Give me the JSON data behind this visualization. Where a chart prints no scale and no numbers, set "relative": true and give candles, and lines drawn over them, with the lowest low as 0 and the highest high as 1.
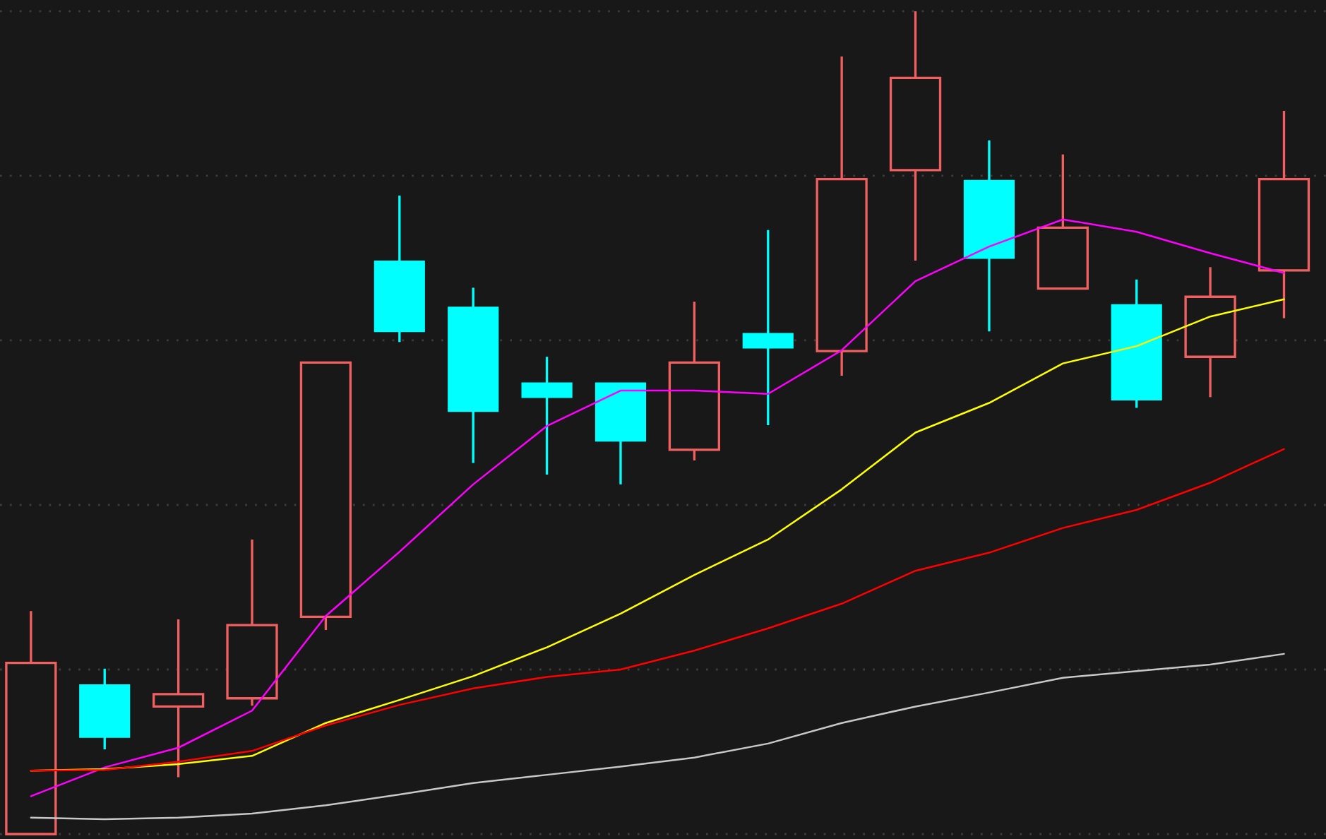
{
  "chart_data": {
    "type": "candlestick",
    "relative": true,
    "grid": "y",
    "tick_labels": false,
    "categories": [
      null,
      null,
      null,
      null,
      null,
      null,
      null,
      null,
      null,
      null,
      null,
      null,
      null,
      null,
      null,
      null,
      null,
      null
    ],
    "ohlc": [
      [
        0.0,
        0.271,
        0.0,
        0.208
      ],
      [
        0.181,
        0.201,
        0.103,
        0.118
      ],
      [
        0.155,
        0.261,
        0.069,
        0.17
      ],
      [
        0.165,
        0.358,
        0.156,
        0.254
      ],
      [
        0.264,
        0.573,
        0.248,
        0.573
      ],
      [
        0.696,
        0.776,
        0.598,
        0.611
      ],
      [
        0.64,
        0.664,
        0.451,
        0.514
      ],
      [
        0.548,
        0.58,
        0.437,
        0.531
      ],
      [
        0.548,
        0.548,
        0.425,
        0.478
      ],
      [
        0.467,
        0.647,
        0.454,
        0.573
      ],
      [
        0.608,
        0.734,
        0.497,
        0.591
      ],
      [
        0.587,
        0.945,
        0.557,
        0.796
      ],
      [
        0.807,
        1.0,
        0.697,
        0.919
      ],
      [
        0.794,
        0.843,
        0.611,
        0.7
      ],
      [
        0.663,
        0.826,
        0.663,
        0.737
      ],
      [
        0.643,
        0.674,
        0.518,
        0.528
      ],
      [
        0.58,
        0.689,
        0.531,
        0.653
      ],
      [
        0.685,
        0.879,
        0.627,
        0.796
      ]
    ],
    "colors": [
      "#f06060",
      "#00ffff",
      "#f06060",
      "#f06060",
      "#f06060",
      "#00ffff",
      "#00ffff",
      "#00ffff",
      "#00ffff",
      "#f06060",
      "#00ffff",
      "#f06060",
      "#f06060",
      "#00ffff",
      "#f06060",
      "#00ffff",
      "#f06060",
      "#f06060"
    ],
    "series": [
      {
        "type": "line",
        "color": "#ff00ff",
        "values": [
          0.046,
          0.081,
          0.105,
          0.15,
          0.265,
          0.343,
          0.425,
          0.496,
          0.539,
          0.539,
          0.535,
          0.588,
          0.672,
          0.714,
          0.747,
          0.732,
          0.706,
          0.682
        ]
      },
      {
        "type": "line",
        "color": "#ffff00",
        "values": [
          0.077,
          0.079,
          0.085,
          0.095,
          0.135,
          0.163,
          0.192,
          0.227,
          0.268,
          0.315,
          0.358,
          0.419,
          0.488,
          0.524,
          0.572,
          0.593,
          0.629,
          0.65
        ]
      },
      {
        "type": "line",
        "color": "#ff0000",
        "values": [
          0.077,
          0.078,
          0.088,
          0.101,
          0.132,
          0.157,
          0.177,
          0.191,
          0.2,
          0.223,
          0.25,
          0.28,
          0.32,
          0.342,
          0.372,
          0.394,
          0.427,
          0.468
        ]
      },
      {
        "type": "line",
        "color": "#c8c8c8",
        "values": [
          0.02,
          0.018,
          0.02,
          0.025,
          0.035,
          0.048,
          0.062,
          0.072,
          0.082,
          0.093,
          0.11,
          0.135,
          0.155,
          0.172,
          0.19,
          0.198,
          0.206,
          0.219
        ]
      }
    ]
  }
}
